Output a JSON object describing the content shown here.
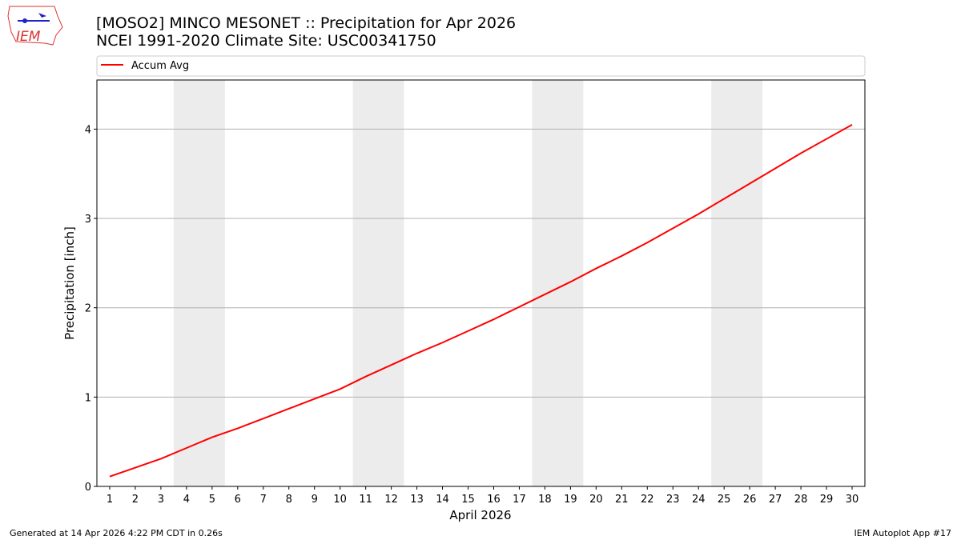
{
  "chart_data": {
    "type": "line",
    "title": "[MOSO2] MINCO MESONET :: Precipitation for Apr 2026",
    "subtitle": "NCEI 1991-2020 Climate Site: USC00341750",
    "logo_text": "IEM",
    "x_label": "April 2026",
    "y_label": "Precipitation [inch]",
    "footer_left": "Generated at 14 Apr 2026 4:22 PM CDT in 0.26s",
    "footer_right": "IEM Autoplot App #17",
    "x": [
      1,
      2,
      3,
      4,
      5,
      6,
      7,
      8,
      9,
      10,
      11,
      12,
      13,
      14,
      15,
      16,
      17,
      18,
      19,
      20,
      21,
      22,
      23,
      24,
      25,
      26,
      27,
      28,
      29,
      30
    ],
    "series": [
      {
        "name": "Accum Avg",
        "color": "#ff0000",
        "values": [
          0.11,
          0.21,
          0.31,
          0.43,
          0.55,
          0.65,
          0.76,
          0.87,
          0.98,
          1.09,
          1.23,
          1.36,
          1.49,
          1.61,
          1.74,
          1.87,
          2.01,
          2.15,
          2.29,
          2.44,
          2.58,
          2.73,
          2.89,
          3.05,
          3.22,
          3.39,
          3.56,
          3.73,
          3.89,
          4.05
        ]
      }
    ],
    "shaded_spans": [
      [
        3.5,
        5.5
      ],
      [
        10.5,
        12.5
      ],
      [
        17.5,
        19.5
      ],
      [
        24.5,
        26.5
      ]
    ],
    "shade_color": "#ececec",
    "xlim": [
      0.5,
      30.5
    ],
    "ylim": [
      0,
      4.55
    ],
    "xticks": [
      1,
      2,
      3,
      4,
      5,
      6,
      7,
      8,
      9,
      10,
      11,
      12,
      13,
      14,
      15,
      16,
      17,
      18,
      19,
      20,
      21,
      22,
      23,
      24,
      25,
      26,
      27,
      28,
      29,
      30
    ],
    "yticks": [
      0,
      1,
      2,
      3,
      4
    ],
    "grid": "y",
    "legend": "top"
  }
}
